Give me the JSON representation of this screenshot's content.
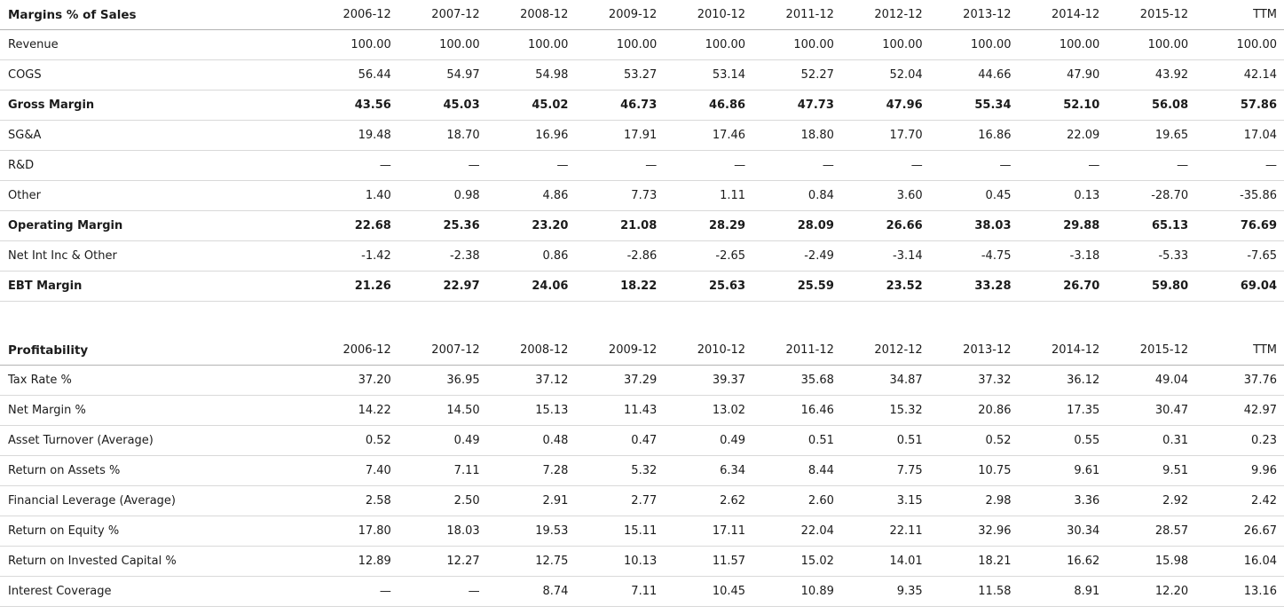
{
  "columns": [
    "2006-12",
    "2007-12",
    "2008-12",
    "2009-12",
    "2010-12",
    "2011-12",
    "2012-12",
    "2013-12",
    "2014-12",
    "2015-12",
    "TTM"
  ],
  "tables": [
    {
      "name": "margins",
      "title": "Margins % of Sales",
      "rows": [
        {
          "label": "Revenue",
          "bold": false,
          "values": [
            "100.00",
            "100.00",
            "100.00",
            "100.00",
            "100.00",
            "100.00",
            "100.00",
            "100.00",
            "100.00",
            "100.00",
            "100.00"
          ]
        },
        {
          "label": "COGS",
          "bold": false,
          "values": [
            "56.44",
            "54.97",
            "54.98",
            "53.27",
            "53.14",
            "52.27",
            "52.04",
            "44.66",
            "47.90",
            "43.92",
            "42.14"
          ]
        },
        {
          "label": "Gross Margin",
          "bold": true,
          "values": [
            "43.56",
            "45.03",
            "45.02",
            "46.73",
            "46.86",
            "47.73",
            "47.96",
            "55.34",
            "52.10",
            "56.08",
            "57.86"
          ]
        },
        {
          "label": "SG&A",
          "bold": false,
          "values": [
            "19.48",
            "18.70",
            "16.96",
            "17.91",
            "17.46",
            "18.80",
            "17.70",
            "16.86",
            "22.09",
            "19.65",
            "17.04"
          ]
        },
        {
          "label": "R&D",
          "bold": false,
          "values": [
            "—",
            "—",
            "—",
            "—",
            "—",
            "—",
            "—",
            "—",
            "—",
            "—",
            "—"
          ]
        },
        {
          "label": "Other",
          "bold": false,
          "values": [
            "1.40",
            "0.98",
            "4.86",
            "7.73",
            "1.11",
            "0.84",
            "3.60",
            "0.45",
            "0.13",
            "-28.70",
            "-35.86"
          ]
        },
        {
          "label": "Operating Margin",
          "bold": true,
          "values": [
            "22.68",
            "25.36",
            "23.20",
            "21.08",
            "28.29",
            "28.09",
            "26.66",
            "38.03",
            "29.88",
            "65.13",
            "76.69"
          ]
        },
        {
          "label": "Net Int Inc & Other",
          "bold": false,
          "values": [
            "-1.42",
            "-2.38",
            "0.86",
            "-2.86",
            "-2.65",
            "-2.49",
            "-3.14",
            "-4.75",
            "-3.18",
            "-5.33",
            "-7.65"
          ]
        },
        {
          "label": "EBT Margin",
          "bold": true,
          "values": [
            "21.26",
            "22.97",
            "24.06",
            "18.22",
            "25.63",
            "25.59",
            "23.52",
            "33.28",
            "26.70",
            "59.80",
            "69.04"
          ]
        }
      ]
    },
    {
      "name": "profitability",
      "title": "Profitability",
      "rows": [
        {
          "label": "Tax Rate %",
          "bold": false,
          "values": [
            "37.20",
            "36.95",
            "37.12",
            "37.29",
            "39.37",
            "35.68",
            "34.87",
            "37.32",
            "36.12",
            "49.04",
            "37.76"
          ]
        },
        {
          "label": "Net Margin %",
          "bold": false,
          "values": [
            "14.22",
            "14.50",
            "15.13",
            "11.43",
            "13.02",
            "16.46",
            "15.32",
            "20.86",
            "17.35",
            "30.47",
            "42.97"
          ]
        },
        {
          "label": "Asset Turnover (Average)",
          "bold": false,
          "values": [
            "0.52",
            "0.49",
            "0.48",
            "0.47",
            "0.49",
            "0.51",
            "0.51",
            "0.52",
            "0.55",
            "0.31",
            "0.23"
          ]
        },
        {
          "label": "Return on Assets %",
          "bold": false,
          "values": [
            "7.40",
            "7.11",
            "7.28",
            "5.32",
            "6.34",
            "8.44",
            "7.75",
            "10.75",
            "9.61",
            "9.51",
            "9.96"
          ]
        },
        {
          "label": "Financial Leverage (Average)",
          "bold": false,
          "values": [
            "2.58",
            "2.50",
            "2.91",
            "2.77",
            "2.62",
            "2.60",
            "3.15",
            "2.98",
            "3.36",
            "2.92",
            "2.42"
          ]
        },
        {
          "label": "Return on Equity %",
          "bold": false,
          "values": [
            "17.80",
            "18.03",
            "19.53",
            "15.11",
            "17.11",
            "22.04",
            "22.11",
            "32.96",
            "30.34",
            "28.57",
            "26.67"
          ]
        },
        {
          "label": "Return on Invested Capital %",
          "bold": false,
          "values": [
            "12.89",
            "12.27",
            "12.75",
            "10.13",
            "11.57",
            "15.02",
            "14.01",
            "18.21",
            "16.62",
            "15.98",
            "16.04"
          ]
        },
        {
          "label": "Interest Coverage",
          "bold": false,
          "values": [
            "—",
            "—",
            "8.74",
            "7.11",
            "10.45",
            "10.89",
            "9.35",
            "11.58",
            "8.91",
            "12.20",
            "13.16"
          ]
        }
      ]
    }
  ]
}
